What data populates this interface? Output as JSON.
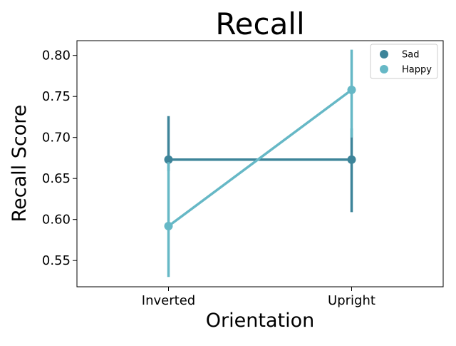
{
  "chart_data": {
    "type": "line",
    "title": "Recall",
    "xlabel": "Orientation",
    "ylabel": "Recall Score",
    "categories": [
      "Inverted",
      "Upright"
    ],
    "ylim": [
      0.518,
      0.818
    ],
    "yticks": [
      0.55,
      0.6,
      0.65,
      0.7,
      0.75,
      0.8
    ],
    "ytick_labels": [
      "0.55",
      "0.60",
      "0.65",
      "0.70",
      "0.75",
      "0.80"
    ],
    "grid": false,
    "legend_position": "top-right",
    "series": [
      {
        "name": "Sad",
        "color": "#3d8499",
        "values": [
          0.673,
          0.673
        ],
        "ci_low": [
          0.659,
          0.609
        ],
        "ci_high": [
          0.726,
          0.711
        ]
      },
      {
        "name": "Happy",
        "color": "#66b8c6",
        "values": [
          0.592,
          0.758
        ],
        "ci_low": [
          0.53,
          0.7
        ],
        "ci_high": [
          0.67,
          0.807
        ]
      }
    ]
  }
}
